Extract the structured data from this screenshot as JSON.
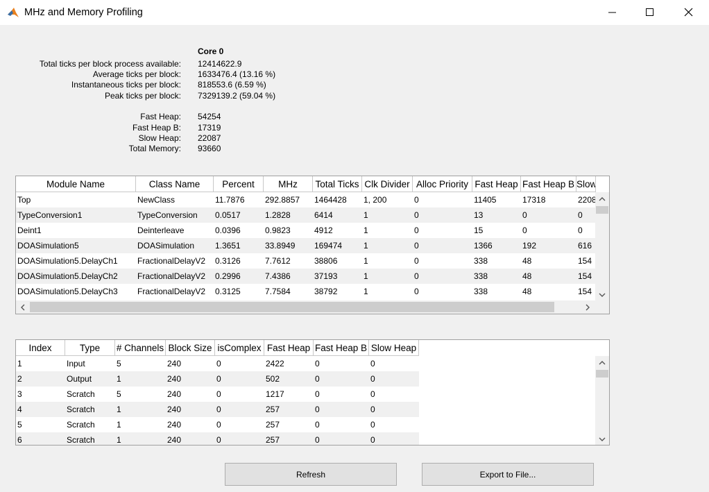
{
  "window": {
    "title": "MHz and Memory Profiling"
  },
  "summary": {
    "header": "Core 0",
    "rows": [
      {
        "label": "Total ticks per block process available:",
        "value": "12414622.9"
      },
      {
        "label": "Average ticks per block:",
        "value": "1633476.4 (13.16 %)"
      },
      {
        "label": "Instantaneous ticks per block:",
        "value": "818553.6 (6.59 %)"
      },
      {
        "label": "Peak ticks per block:",
        "value": "7329139.2 (59.04 %)"
      }
    ],
    "memory": [
      {
        "label": "Fast Heap:",
        "value": "54254"
      },
      {
        "label": "Fast Heap B:",
        "value": "17319"
      },
      {
        "label": "Slow Heap:",
        "value": "22087"
      },
      {
        "label": "Total Memory:",
        "value": "93660"
      }
    ]
  },
  "modules_table": {
    "columns": [
      "Module Name",
      "Class Name",
      "Percent",
      "MHz",
      "Total Ticks",
      "Clk Divider",
      "Alloc Priority",
      "Fast Heap",
      "Fast Heap B",
      "Slow"
    ],
    "rows": [
      [
        "Top",
        "NewClass",
        "11.7876",
        "292.8857",
        "1464428",
        "1, 200",
        "0",
        "11405",
        "17318",
        "2208"
      ],
      [
        "TypeConversion1",
        "TypeConversion",
        "0.0517",
        "1.2828",
        "6414",
        "1",
        "0",
        "13",
        "0",
        "0"
      ],
      [
        "Deint1",
        "Deinterleave",
        "0.0396",
        "0.9823",
        "4912",
        "1",
        "0",
        "15",
        "0",
        "0"
      ],
      [
        "DOASimulation5",
        "DOASimulation",
        "1.3651",
        "33.8949",
        "169474",
        "1",
        "0",
        "1366",
        "192",
        "616"
      ],
      [
        "DOASimulation5.DelayCh1",
        "FractionalDelayV2",
        "0.3126",
        "7.7612",
        "38806",
        "1",
        "0",
        "338",
        "48",
        "154"
      ],
      [
        "DOASimulation5.DelayCh2",
        "FractionalDelayV2",
        "0.2996",
        "7.4386",
        "37193",
        "1",
        "0",
        "338",
        "48",
        "154"
      ],
      [
        "DOASimulation5.DelayCh3",
        "FractionalDelayV2",
        "0.3125",
        "7.7584",
        "38792",
        "1",
        "0",
        "338",
        "48",
        "154"
      ]
    ]
  },
  "buffers_table": {
    "columns": [
      "Index",
      "Type",
      "# Channels",
      "Block Size",
      "isComplex",
      "Fast Heap",
      "Fast Heap B",
      "Slow Heap"
    ],
    "rows": [
      [
        "1",
        "Input",
        "5",
        "240",
        "0",
        "2422",
        "0",
        "0"
      ],
      [
        "2",
        "Output",
        "1",
        "240",
        "0",
        "502",
        "0",
        "0"
      ],
      [
        "3",
        "Scratch",
        "5",
        "240",
        "0",
        "1217",
        "0",
        "0"
      ],
      [
        "4",
        "Scratch",
        "1",
        "240",
        "0",
        "257",
        "0",
        "0"
      ],
      [
        "5",
        "Scratch",
        "1",
        "240",
        "0",
        "257",
        "0",
        "0"
      ],
      [
        "6",
        "Scratch",
        "1",
        "240",
        "0",
        "257",
        "0",
        "0"
      ]
    ]
  },
  "buttons": [
    "Refresh",
    "Export to File..."
  ]
}
